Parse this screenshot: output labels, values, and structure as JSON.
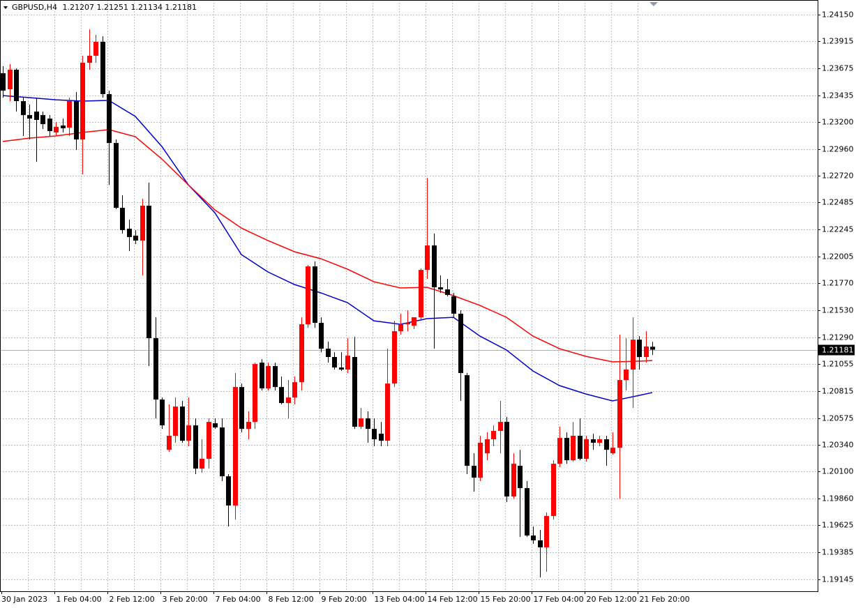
{
  "chart_data": {
    "type": "candlestick",
    "title": "GBPUSD,H4",
    "categories": [
      "30 Jan 2023",
      null,
      null,
      null,
      null,
      null,
      null,
      null,
      "1 Feb 04:00",
      null,
      null,
      null,
      null,
      null,
      null,
      null,
      "2 Feb 12:00",
      null,
      null,
      null,
      null,
      null,
      null,
      null,
      "3 Feb 20:00",
      null,
      null,
      null,
      null,
      null,
      null,
      null,
      "7 Feb 04:00",
      null,
      null,
      null,
      null,
      null,
      null,
      null,
      "8 Feb 12:00",
      null,
      null,
      null,
      null,
      null,
      null,
      null,
      "9 Feb 20:00",
      null,
      null,
      null,
      null,
      null,
      null,
      null,
      "13 Feb 04:00",
      null,
      null,
      null,
      null,
      null,
      null,
      null,
      "14 Feb 12:00",
      null,
      null,
      null,
      null,
      null,
      null,
      null,
      "15 Feb 20:00",
      null,
      null,
      null,
      null,
      null,
      null,
      null,
      "17 Feb 04:00",
      null,
      null,
      null,
      null,
      null,
      null,
      null,
      "20 Feb 12:00",
      null,
      null,
      null,
      null,
      null,
      null,
      null,
      "21 Feb 20:00",
      null,
      null
    ],
    "open": [
      1.23631,
      1.23489,
      1.23662,
      1.23384,
      1.2326,
      1.23291,
      1.2326,
      1.23229,
      1.23106,
      1.23168,
      1.23149,
      1.23384,
      1.23044,
      1.23724,
      1.23786,
      1.23909,
      1.23446,
      1.23013,
      1.22438,
      1.22253,
      1.22191,
      1.22148,
      1.22457,
      1.21283,
      1.20739,
      1.20294,
      1.20418,
      1.20677,
      1.20374,
      1.2051,
      1.20127,
      1.20214,
      1.20529,
      1.20492,
      1.20059,
      1.198,
      1.2085,
      1.20479,
      1.20541,
      1.21066,
      1.20838,
      1.21036,
      1.2085,
      1.20708,
      1.20757,
      1.20893,
      1.21406,
      1.21919,
      1.21419,
      1.2119,
      1.21116,
      1.21023,
      1.21005,
      1.21116,
      1.20498,
      1.20572,
      1.20479,
      1.20436,
      1.20374,
      1.20881,
      1.21345,
      1.21406,
      1.21394,
      1.21468,
      1.21888,
      1.22105,
      1.21734,
      1.21715,
      1.21654,
      1.215,
      1.20955,
      1.20152,
      1.20047,
      1.20263,
      1.20387,
      1.20461,
      1.20541,
      1.1988,
      1.20152,
      1.19954,
      1.19534,
      1.19491,
      1.19429,
      1.19707,
      1.2017,
      1.20399,
      1.20201,
      1.20418,
      1.20214,
      1.20387,
      1.20356,
      1.20387,
      1.20263,
      1.20312,
      1.20912,
      1.21005,
      1.2127,
      1.21116,
      1.21207
    ],
    "high": [
      1.23693,
      1.23711,
      1.23674,
      1.23415,
      1.23353,
      1.23415,
      1.23291,
      1.2326,
      1.23199,
      1.23229,
      1.23415,
      1.23464,
      1.23786,
      1.2402,
      1.23971,
      1.23959,
      1.23477,
      1.23044,
      1.2255,
      1.22333,
      1.22241,
      1.22519,
      1.22661,
      1.21468,
      1.20757,
      1.20696,
      1.20757,
      1.20727,
      1.20757,
      1.20572,
      1.20387,
      1.20572,
      1.20572,
      1.20572,
      1.20078,
      1.20974,
      1.20881,
      1.20634,
      1.21066,
      1.21097,
      1.21066,
      1.21066,
      1.20943,
      1.20912,
      1.20943,
      1.21468,
      1.21932,
      1.21963,
      1.21468,
      1.21252,
      1.21159,
      1.21159,
      1.21283,
      1.21295,
      1.20665,
      1.20634,
      1.20572,
      1.20541,
      1.2119,
      1.21437,
      1.215,
      1.2153,
      1.21468,
      1.21901,
      1.22704,
      1.2221,
      1.21839,
      1.21808,
      1.21684,
      1.2153,
      1.20974,
      1.20263,
      1.20418,
      1.20448,
      1.2051,
      1.20727,
      1.20584,
      1.20263,
      1.20294,
      1.20016,
      1.19614,
      1.19583,
      1.19738,
      1.20201,
      1.20498,
      1.20448,
      1.20541,
      1.20572,
      1.20418,
      1.20436,
      1.20418,
      1.20418,
      1.20448,
      1.21314,
      1.21283,
      1.21468,
      1.21301,
      1.21345,
      1.21251
    ],
    "low": [
      1.23415,
      1.23384,
      1.23291,
      1.23075,
      1.23044,
      1.22846,
      1.23137,
      1.23075,
      1.23075,
      1.23106,
      1.23075,
      1.22951,
      1.22735,
      1.23662,
      1.23724,
      1.23415,
      1.22642,
      1.22426,
      1.2221,
      1.22055,
      1.22117,
      1.21839,
      1.21036,
      1.20572,
      1.20479,
      1.20275,
      1.20356,
      1.20356,
      1.20325,
      1.20078,
      1.2009,
      1.20127,
      1.20479,
      1.20016,
      1.19614,
      1.19676,
      1.20448,
      1.20387,
      1.20479,
      1.20819,
      1.20819,
      1.20819,
      1.20696,
      1.20572,
      1.20696,
      1.20819,
      1.21375,
      1.21375,
      1.21159,
      1.21066,
      1.21005,
      1.20992,
      1.20974,
      1.20479,
      1.20479,
      1.20356,
      1.20325,
      1.20325,
      1.20325,
      1.2085,
      1.21314,
      1.21345,
      1.21363,
      1.21437,
      1.21808,
      1.2119,
      1.21684,
      1.21654,
      1.21468,
      1.20727,
      1.20078,
      1.19923,
      1.20016,
      1.20201,
      1.20325,
      1.20263,
      1.1983,
      1.19861,
      1.19521,
      1.19521,
      1.1946,
      1.19163,
      1.19212,
      1.19676,
      1.20139,
      1.2017,
      1.20189,
      1.20201,
      1.20189,
      1.20294,
      1.20325,
      1.20152,
      1.20251,
      1.19861,
      1.20819,
      1.20665,
      1.21005,
      1.21066,
      1.21134
    ],
    "close": [
      1.23477,
      1.23662,
      1.23384,
      1.2326,
      1.23229,
      1.23217,
      1.2318,
      1.23118,
      1.23155,
      1.23143,
      1.23384,
      1.23044,
      1.23724,
      1.23786,
      1.23909,
      1.23446,
      1.23013,
      1.22438,
      1.22241,
      1.22179,
      1.22148,
      1.22457,
      1.21283,
      1.20739,
      1.2051,
      1.20418,
      1.20677,
      1.20374,
      1.2051,
      1.20127,
      1.20214,
      1.20541,
      1.20492,
      1.20059,
      1.198,
      1.2085,
      1.20479,
      1.20541,
      1.21054,
      1.20838,
      1.21036,
      1.2085,
      1.20708,
      1.20757,
      1.20893,
      1.21406,
      1.21919,
      1.21419,
      1.2119,
      1.21116,
      1.21023,
      1.21005,
      1.21128,
      1.20498,
      1.20572,
      1.20479,
      1.20387,
      1.20374,
      1.20881,
      1.21345,
      1.21406,
      1.21419,
      1.21468,
      1.21888,
      1.22105,
      1.21734,
      1.21715,
      1.21666,
      1.215,
      1.20974,
      1.20152,
      1.20047,
      1.20356,
      1.20387,
      1.20461,
      1.20541,
      1.1988,
      1.2017,
      1.19954,
      1.19534,
      1.19491,
      1.19429,
      1.19707,
      1.2017,
      1.20399,
      1.20201,
      1.20418,
      1.20214,
      1.20387,
      1.20356,
      1.20387,
      1.20294,
      1.20312,
      1.20912,
      1.21005,
      1.2127,
      1.21116,
      1.21209,
      1.21181
    ],
    "up_color": "#ff0000",
    "down_color": "#000000",
    "lines": [
      {
        "color": "#0000cd",
        "x": [
          0,
          4,
          8,
          12,
          16,
          20,
          24,
          28,
          32,
          36,
          40,
          44,
          48,
          52,
          56,
          60,
          64,
          68,
          72,
          76,
          80,
          84,
          88,
          92,
          96,
          98
        ],
        "values": [
          1.23433,
          1.23415,
          1.23396,
          1.23384,
          1.2339,
          1.23248,
          1.22982,
          1.22642,
          1.22395,
          1.22024,
          1.2187,
          1.21759,
          1.21684,
          1.21598,
          1.21437,
          1.21406,
          1.21456,
          1.21468,
          1.21301,
          1.21178,
          1.20992,
          1.20863,
          1.20788,
          1.20727,
          1.20776,
          1.20801
        ]
      },
      {
        "color": "#ff0000",
        "x": [
          0,
          4,
          8,
          12,
          16,
          20,
          24,
          28,
          32,
          36,
          40,
          44,
          48,
          52,
          56,
          60,
          64,
          68,
          72,
          76,
          80,
          84,
          88,
          92,
          96,
          98
        ],
        "values": [
          1.23026,
          1.23056,
          1.23075,
          1.23106,
          1.23131,
          1.23069,
          1.22871,
          1.22642,
          1.2242,
          1.22259,
          1.22148,
          1.22049,
          1.21987,
          1.21895,
          1.21783,
          1.21728,
          1.21734,
          1.2166,
          1.21573,
          1.21468,
          1.21301,
          1.2119,
          1.21122,
          1.21073,
          1.21079,
          1.21085
        ]
      }
    ],
    "ylim": [
      1.1904,
      1.2428
    ],
    "yticks": [
      {
        "value": 1.2415,
        "label": "1.24150"
      },
      {
        "value": 1.23915,
        "label": "1.23915"
      },
      {
        "value": 1.23675,
        "label": "1.23675"
      },
      {
        "value": 1.23435,
        "label": "1.23435"
      },
      {
        "value": 1.232,
        "label": "1.23200"
      },
      {
        "value": 1.2296,
        "label": "1.22960"
      },
      {
        "value": 1.2272,
        "label": "1.22720"
      },
      {
        "value": 1.22485,
        "label": "1.22485"
      },
      {
        "value": 1.22245,
        "label": "1.22245"
      },
      {
        "value": 1.22005,
        "label": "1.22005"
      },
      {
        "value": 1.2177,
        "label": "1.21770"
      },
      {
        "value": 1.2153,
        "label": "1.21530"
      },
      {
        "value": 1.2129,
        "label": "1.21290"
      },
      {
        "value": 1.21055,
        "label": "1.21055"
      },
      {
        "value": 1.20815,
        "label": "1.20815"
      },
      {
        "value": 1.20575,
        "label": "1.20575"
      },
      {
        "value": 1.2034,
        "label": "1.20340"
      },
      {
        "value": 1.201,
        "label": "1.20100"
      },
      {
        "value": 1.1986,
        "label": "1.19860"
      },
      {
        "value": 1.19625,
        "label": "1.19625"
      },
      {
        "value": 1.19385,
        "label": "1.19385"
      },
      {
        "value": 1.19145,
        "label": "1.19145"
      }
    ],
    "grid": true
  }
}
